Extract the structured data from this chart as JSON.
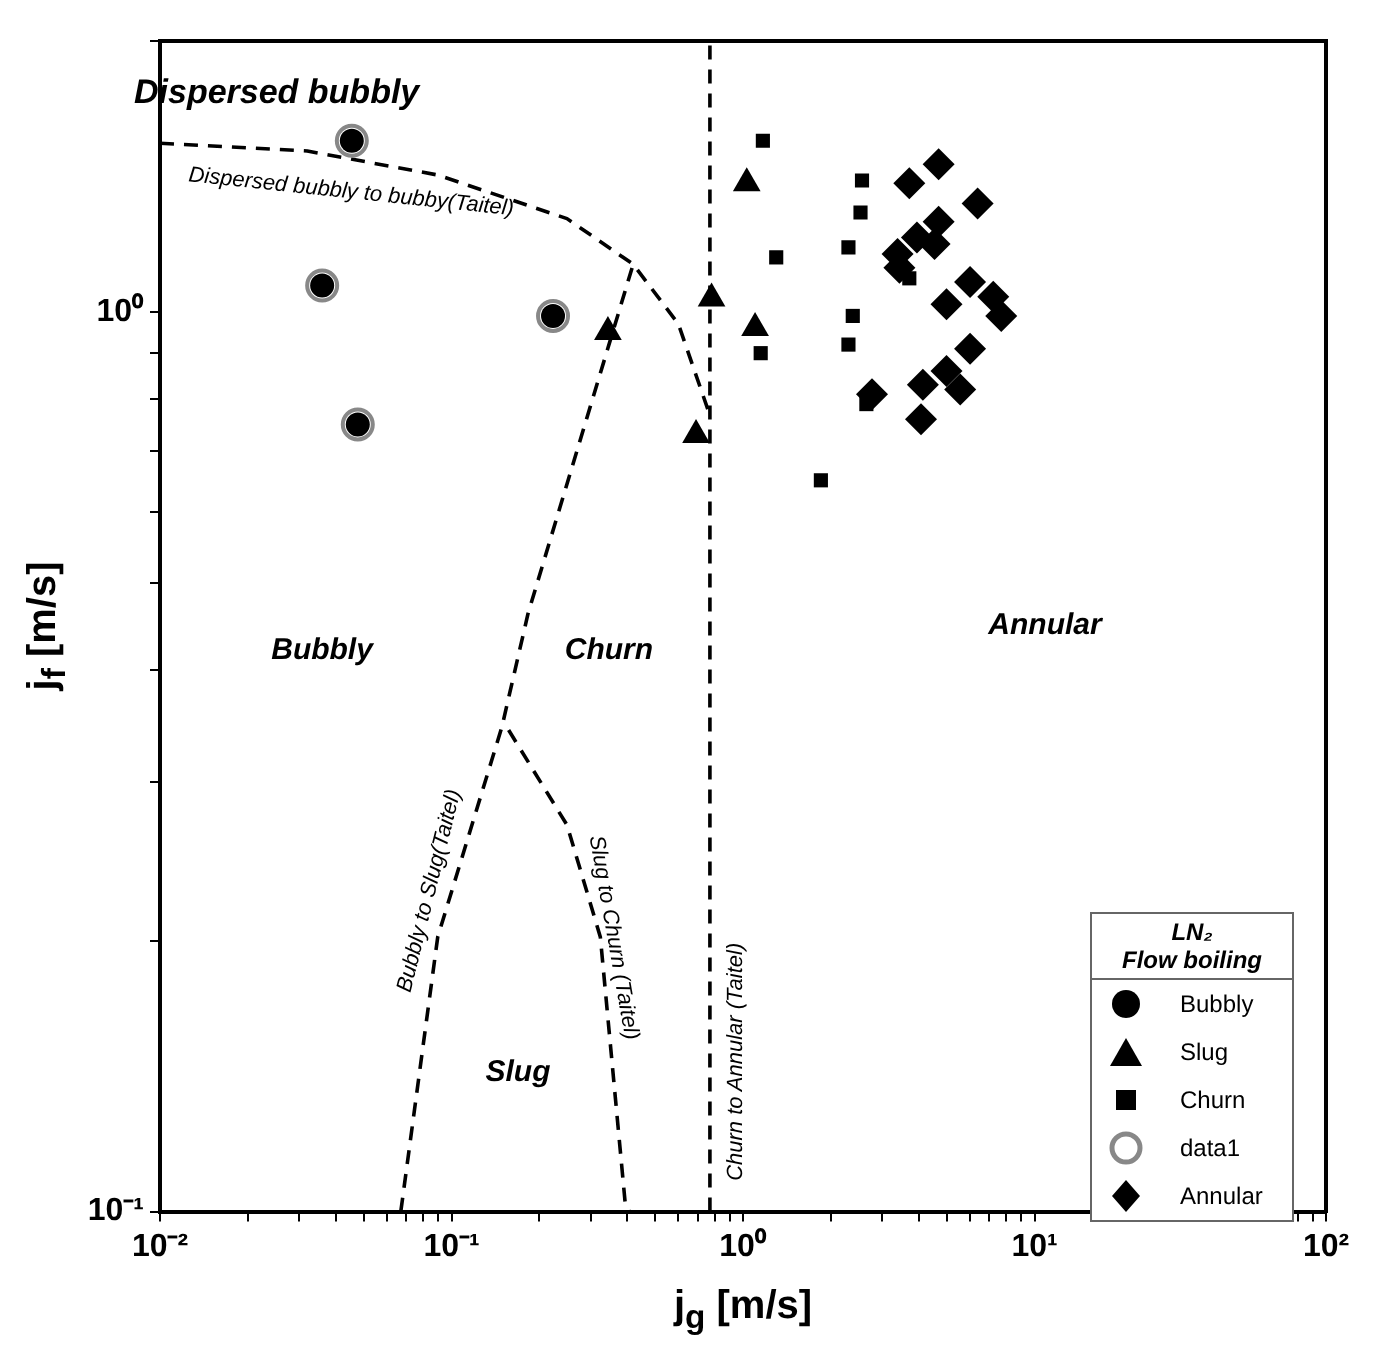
{
  "chart_data": {
    "type": "scatter",
    "xlabel": "j$_{g}$ [m/s]",
    "ylabel": "j$_{f}$ [m/s]",
    "log": "xy",
    "grid": false,
    "legend": "bottom right",
    "legend_title": "LN₂\nFlow boiling",
    "xlim": [
      0.01,
      100
    ],
    "ylim": [
      0.1,
      2
    ],
    "xticks": [
      {
        "value": 0.01,
        "label": "10⁻²"
      },
      {
        "value": 0.02,
        "label": null
      },
      {
        "value": 0.03,
        "label": null
      },
      {
        "value": 0.04,
        "label": null
      },
      {
        "value": 0.05,
        "label": null
      },
      {
        "value": 0.06,
        "label": null
      },
      {
        "value": 0.07,
        "label": null
      },
      {
        "value": 0.08,
        "label": null
      },
      {
        "value": 0.09,
        "label": null
      },
      {
        "value": 0.1,
        "label": "10⁻¹"
      },
      {
        "value": 0.2,
        "label": null
      },
      {
        "value": 0.3,
        "label": null
      },
      {
        "value": 0.4,
        "label": null
      },
      {
        "value": 0.5,
        "label": null
      },
      {
        "value": 0.6,
        "label": null
      },
      {
        "value": 0.7,
        "label": null
      },
      {
        "value": 0.8,
        "label": null
      },
      {
        "value": 0.9,
        "label": null
      },
      {
        "value": 1,
        "label": "10⁰"
      },
      {
        "value": 2,
        "label": null
      },
      {
        "value": 3,
        "label": null
      },
      {
        "value": 4,
        "label": null
      },
      {
        "value": 5,
        "label": null
      },
      {
        "value": 6,
        "label": null
      },
      {
        "value": 7,
        "label": null
      },
      {
        "value": 8,
        "label": null
      },
      {
        "value": 9,
        "label": null
      },
      {
        "value": 10,
        "label": "10¹"
      },
      {
        "value": 20,
        "label": null
      },
      {
        "value": 30,
        "label": null
      },
      {
        "value": 40,
        "label": null
      },
      {
        "value": 50,
        "label": null
      },
      {
        "value": 60,
        "label": null
      },
      {
        "value": 70,
        "label": null
      },
      {
        "value": 80,
        "label": null
      },
      {
        "value": 90,
        "label": null
      },
      {
        "value": 100,
        "label": "10²"
      }
    ],
    "yticks": [
      {
        "value": 0.1,
        "label": "10⁻¹"
      },
      {
        "value": 0.2,
        "label": null
      },
      {
        "value": 0.3,
        "label": null
      },
      {
        "value": 0.4,
        "label": null
      },
      {
        "value": 0.5,
        "label": null
      },
      {
        "value": 0.6,
        "label": null
      },
      {
        "value": 0.7,
        "label": null
      },
      {
        "value": 0.8,
        "label": null
      },
      {
        "value": 0.9,
        "label": null
      },
      {
        "value": 1,
        "label": "10⁰"
      },
      {
        "value": 2,
        "label": null
      }
    ],
    "series": [
      {
        "name": "data1",
        "marker": "circle",
        "color": "#888888",
        "x": [
          0.0455,
          0.036,
          0.223,
          0.0477
        ],
        "values": [
          1.55,
          1.07,
          0.99,
          0.75
        ]
      },
      {
        "name": "Bubbly",
        "marker": "circle",
        "color": "#000000",
        "x": [
          0.0455,
          0.036,
          0.223,
          0.0477
        ],
        "values": [
          1.55,
          1.07,
          0.99,
          0.75
        ]
      },
      {
        "name": "Slug",
        "marker": "triangle",
        "color": "#000000",
        "x": [
          0.344,
          0.78,
          0.69,
          1.03,
          1.1
        ],
        "values": [
          0.95,
          1.035,
          0.73,
          1.39,
          0.96
        ]
      },
      {
        "name": "Churn",
        "marker": "square",
        "color": "#000000",
        "x": [
          1.17,
          1.3,
          1.15,
          2.56,
          2.53,
          2.3,
          2.38,
          2.3,
          1.85,
          2.65,
          3.72
        ],
        "values": [
          1.55,
          1.15,
          0.9,
          1.4,
          1.29,
          1.18,
          0.99,
          0.92,
          0.65,
          0.79,
          1.09
        ]
      },
      {
        "name": "Annular",
        "marker": "diamond",
        "color": "#000000",
        "x": [
          4.69,
          3.72,
          6.38,
          4.69,
          3.95,
          4.54,
          3.39,
          3.44,
          6.01,
          4.99,
          7.22,
          7.69,
          6.01,
          4.99,
          5.56,
          4.14,
          2.77,
          4.08
        ],
        "values": [
          1.46,
          1.39,
          1.32,
          1.26,
          1.21,
          1.19,
          1.16,
          1.12,
          1.08,
          1.02,
          1.04,
          0.99,
          0.91,
          0.86,
          0.82,
          0.83,
          0.81,
          0.76
        ]
      },
      {
        "type": "line",
        "marker": "none",
        "line_style": "dashed",
        "color": "#000000",
        "x": [
          0.01,
          0.032,
          0.0897,
          0.249,
          0.42,
          0.6,
          0.757
        ],
        "values": [
          1.54,
          1.51,
          1.42,
          1.27,
          1.13,
          0.97,
          0.78
        ]
      },
      {
        "type": "line",
        "marker": "none",
        "line_style": "dashed",
        "color": "#000000",
        "x": [
          0.067,
          0.0897,
          0.149,
          0.183,
          0.249,
          0.42
        ],
        "values": [
          0.1,
          0.202,
          0.346,
          0.462,
          0.644,
          1.13
        ]
      },
      {
        "type": "line",
        "marker": "none",
        "line_style": "dashed",
        "color": "#000000",
        "x": [
          0.157,
          0.249,
          0.324,
          0.395,
          0.408
        ],
        "values": [
          0.343,
          0.269,
          0.202,
          0.1016,
          0.1
        ]
      },
      {
        "type": "line",
        "marker": "none",
        "line_style": "dashed",
        "color": "#000000",
        "x": [
          0.77,
          0.77
        ],
        "values": [
          0.1,
          2
        ]
      }
    ],
    "annotations": [
      "Dispersed bubbly",
      "Dispersed bubbly to bubby(Taitel)",
      "Bubbly",
      "Churn",
      "Annular",
      "Slug",
      "Bubbly to Slug(Taitel)",
      "Slug to Churn (Taitel)",
      "Churn to Annular (Taitel)"
    ]
  }
}
